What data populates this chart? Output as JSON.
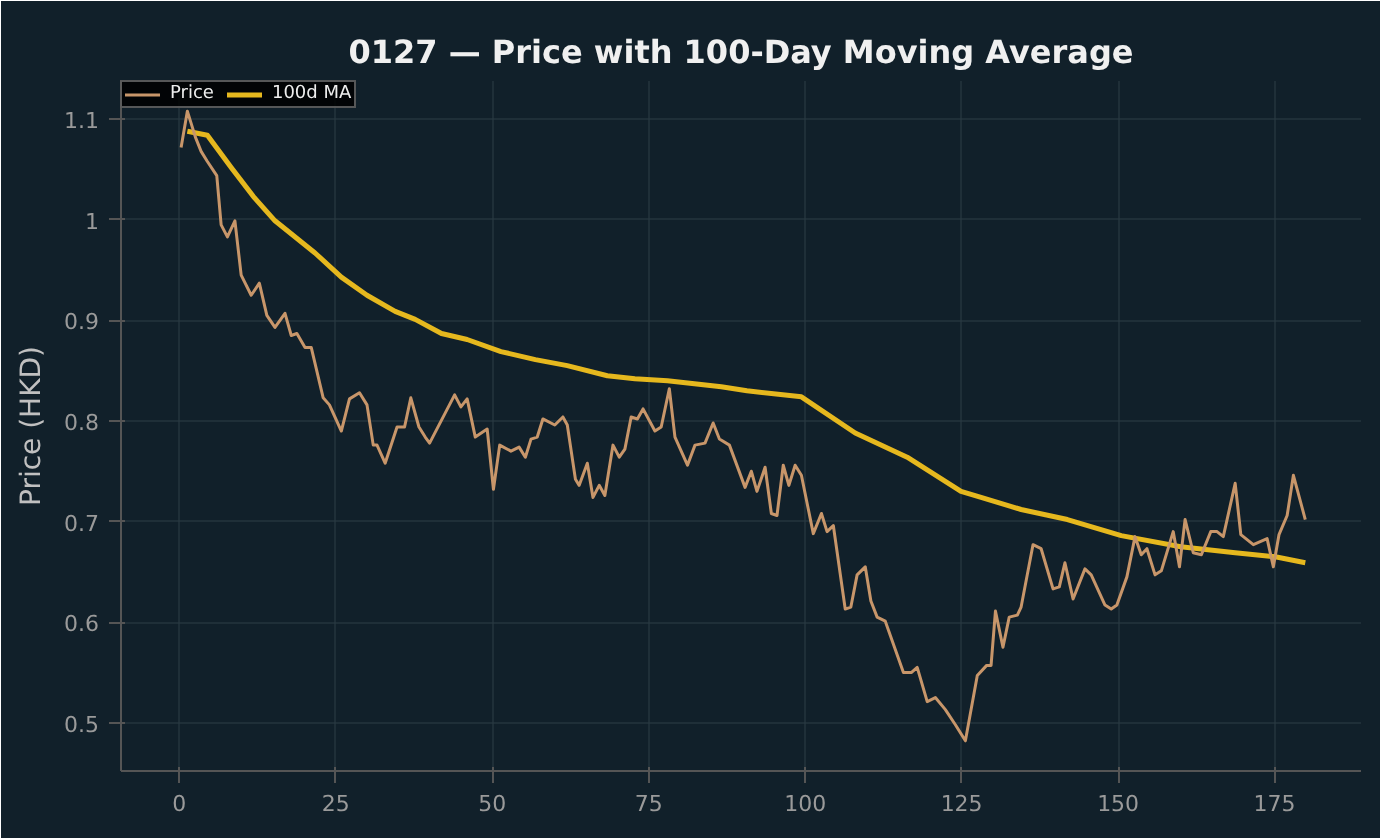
{
  "chart_data": {
    "type": "line",
    "title": "0127 — Price with 100-Day Moving Average",
    "ylabel": "Price (HKD)",
    "xlim": [
      -9.3,
      188.8
    ],
    "ylim": [
      0.452,
      1.138
    ],
    "xticks": [
      0,
      25,
      50,
      75,
      100,
      125,
      150,
      175
    ],
    "yticks": [
      0.5,
      0.6,
      0.7,
      0.8,
      0.9,
      1.0,
      1.1
    ],
    "grid": true,
    "legend": "top left",
    "marker": "none",
    "line_style": "solid",
    "series": [
      {
        "name": "Price",
        "color": "#c8966a",
        "x": [
          0.3,
          1.3,
          2.6,
          3.5,
          4.5,
          6,
          6.7,
          7.7,
          8.9,
          9.9,
          11.5,
          12.8,
          14,
          15.3,
          16.9,
          17.9,
          18.8,
          20.1,
          21.1,
          23,
          24,
          25.9,
          27.2,
          28.8,
          30,
          31,
          31.6,
          32.9,
          34.8,
          36,
          37,
          38.3,
          39.3,
          40,
          44,
          45,
          46,
          47.3,
          49.2,
          50.2,
          51.2,
          53,
          54.3,
          55.3,
          56.2,
          57.2,
          58.1,
          60,
          61.3,
          62,
          63.3,
          63.9,
          65.2,
          66.1,
          67.1,
          68,
          69.3,
          70.3,
          71.2,
          72.2,
          73.2,
          74.1,
          76,
          77,
          78.3,
          79.2,
          81.2,
          82.4,
          84,
          85.3,
          86.3,
          87.9,
          90.4,
          91.4,
          92.3,
          93.6,
          94.6,
          95.5,
          96.5,
          97.4,
          98.4,
          99.4,
          101.3,
          102.6,
          103.5,
          104.5,
          106.4,
          107.3,
          108.3,
          109.6,
          110.5,
          111.5,
          112.8,
          115.7,
          117,
          117.9,
          119.5,
          120.8,
          122.4,
          124,
          125.6,
          127.5,
          129,
          129.7,
          130.4,
          131.6,
          132.6,
          133.9,
          134.5,
          136.4,
          137.7,
          139.6,
          140.6,
          141.5,
          142.8,
          144.7,
          145.7,
          147.9,
          148.9,
          149.8,
          151.4,
          152.7,
          153.7,
          154.6,
          155.9,
          156.9,
          158.8,
          159.8,
          160.7,
          162,
          163.3,
          164.8,
          165.8,
          166.8,
          168.7,
          169.6,
          171.6,
          173.8,
          174.8,
          175.7,
          177,
          178,
          179.9
        ],
        "values": [
          1.072,
          1.108,
          1.082,
          1.068,
          1.058,
          1.044,
          0.995,
          0.983,
          0.999,
          0.945,
          0.925,
          0.937,
          0.905,
          0.893,
          0.907,
          0.885,
          0.887,
          0.873,
          0.873,
          0.823,
          0.816,
          0.79,
          0.822,
          0.828,
          0.816,
          0.776,
          0.776,
          0.758,
          0.794,
          0.794,
          0.823,
          0.794,
          0.784,
          0.778,
          0.826,
          0.814,
          0.822,
          0.784,
          0.792,
          0.732,
          0.776,
          0.77,
          0.774,
          0.764,
          0.782,
          0.784,
          0.802,
          0.796,
          0.804,
          0.796,
          0.742,
          0.736,
          0.758,
          0.724,
          0.736,
          0.726,
          0.776,
          0.764,
          0.772,
          0.804,
          0.802,
          0.812,
          0.79,
          0.794,
          0.832,
          0.784,
          0.756,
          0.776,
          0.778,
          0.798,
          0.782,
          0.776,
          0.734,
          0.75,
          0.73,
          0.754,
          0.708,
          0.706,
          0.756,
          0.736,
          0.756,
          0.746,
          0.688,
          0.708,
          0.69,
          0.696,
          0.613,
          0.615,
          0.647,
          0.655,
          0.621,
          0.605,
          0.601,
          0.55,
          0.55,
          0.555,
          0.521,
          0.525,
          0.513,
          0.498,
          0.482,
          0.547,
          0.557,
          0.557,
          0.611,
          0.575,
          0.605,
          0.607,
          0.615,
          0.677,
          0.673,
          0.633,
          0.635,
          0.659,
          0.623,
          0.653,
          0.647,
          0.617,
          0.613,
          0.617,
          0.645,
          0.685,
          0.667,
          0.673,
          0.647,
          0.651,
          0.69,
          0.655,
          0.702,
          0.669,
          0.667,
          0.69,
          0.69,
          0.685,
          0.738,
          0.687,
          0.677,
          0.683,
          0.655,
          0.687,
          0.706,
          0.746,
          0.702
        ]
      },
      {
        "name": "100d MA",
        "color": "#e6b81e",
        "x": [
          1.3,
          4.5,
          8.3,
          12,
          15.3,
          21.7,
          25.9,
          30,
          34.5,
          37.7,
          41.9,
          46,
          51.4,
          56.9,
          62,
          68.4,
          72.8,
          78,
          86.6,
          90.7,
          99.4,
          108,
          116.3,
          124.9,
          128.1,
          134.5,
          141.9,
          150.5,
          160,
          168.7,
          175.1,
          179.9
        ],
        "values": [
          1.088,
          1.084,
          1.052,
          1.022,
          0.999,
          0.967,
          0.943,
          0.925,
          0.909,
          0.901,
          0.887,
          0.881,
          0.869,
          0.861,
          0.855,
          0.845,
          0.842,
          0.84,
          0.834,
          0.83,
          0.824,
          0.788,
          0.764,
          0.73,
          0.724,
          0.712,
          0.702,
          0.686,
          0.675,
          0.669,
          0.665,
          0.659
        ]
      }
    ]
  }
}
